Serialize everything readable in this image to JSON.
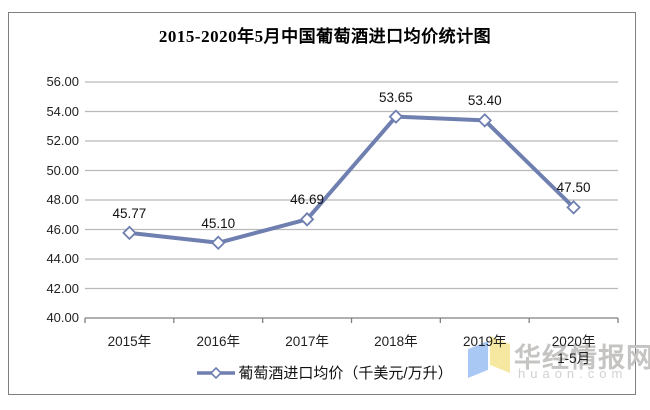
{
  "chart_data": {
    "type": "line",
    "title": "2015-2020年5月中国葡萄酒进口均价统计图",
    "categories": [
      "2015年",
      "2016年",
      "2017年",
      "2018年",
      "2019年",
      "2020年"
    ],
    "category_sublabels": [
      "",
      "",
      "",
      "",
      "",
      "1-5月"
    ],
    "values": [
      45.77,
      45.1,
      46.69,
      53.65,
      53.4,
      47.5
    ],
    "data_labels": [
      "45.77",
      "45.10",
      "46.69",
      "53.65",
      "53.40",
      "47.50"
    ],
    "series_name": "葡萄酒进口均价（千美元/万升）",
    "ylim": [
      40,
      56
    ],
    "ytick_step": 2,
    "ytick_labels": [
      "40.00",
      "42.00",
      "44.00",
      "46.00",
      "48.00",
      "50.00",
      "52.00",
      "54.00",
      "56.00"
    ],
    "grid": true,
    "legend_position": "bottom",
    "marker": "hollow-diamond"
  },
  "legend": {
    "label": "葡萄酒进口均价（千美元/万升）"
  },
  "watermark": {
    "brand": "华经情报网",
    "domain": "huaon.com"
  },
  "colors": {
    "line": "#6f7fb0",
    "grid": "#b9b9b9",
    "axis": "#808080",
    "marker_fill": "#ffffff",
    "frame_border": "#7f7f7f",
    "logo_blue": "#a9c9f4",
    "logo_yellow": "#f6e8a1",
    "watermark_brand": "#c5c4c3",
    "watermark_domain": "#d2d1d0"
  }
}
